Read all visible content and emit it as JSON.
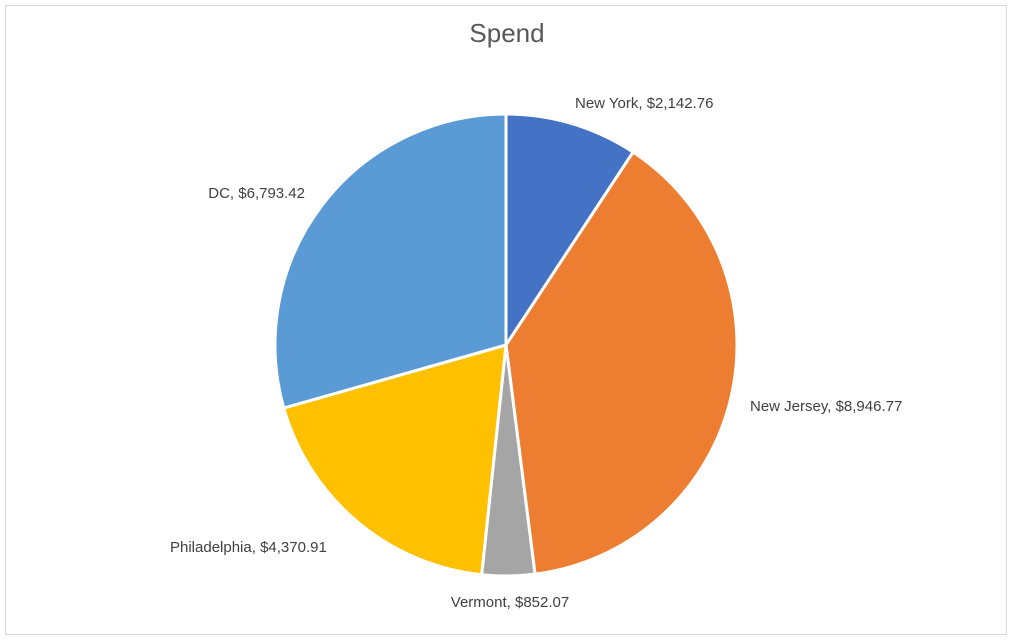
{
  "chart_data": {
    "type": "pie",
    "title": "Spend",
    "categories": [
      "New York",
      "New Jersey",
      "Vermont",
      "Philadelphia",
      "DC"
    ],
    "values": [
      2142.76,
      8946.77,
      852.07,
      4370.91,
      6793.42
    ],
    "labels": [
      "New York, $2,142.76",
      "New Jersey, $8,946.77",
      "Vermont, $852.07",
      "Philadelphia, $4,370.91",
      "DC, $6,793.42"
    ],
    "colors": [
      "#4472c4",
      "#ed7d31",
      "#a5a5a5",
      "#ffc000",
      "#5b9bd5"
    ],
    "legend": "none"
  }
}
